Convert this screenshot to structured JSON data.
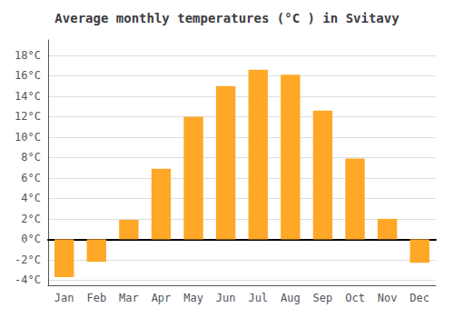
{
  "chart_data": {
    "type": "bar",
    "title": "Average monthly temperatures (°C ) in Svitavy",
    "categories": [
      "Jan",
      "Feb",
      "Mar",
      "Apr",
      "May",
      "Jun",
      "Jul",
      "Aug",
      "Sep",
      "Oct",
      "Nov",
      "Dec"
    ],
    "values": [
      -3.7,
      -2.2,
      1.9,
      6.9,
      12.0,
      15.0,
      16.6,
      16.1,
      12.6,
      7.9,
      2.0,
      -2.3
    ],
    "color": "#FFA726",
    "ylim": [
      -4.5,
      19.5
    ],
    "yticks": [
      {
        "value": -4,
        "label": "-4°C"
      },
      {
        "value": -2,
        "label": "-2°C"
      },
      {
        "value": 0,
        "label": "0°C"
      },
      {
        "value": 2,
        "label": "2°C"
      },
      {
        "value": 4,
        "label": "4°C"
      },
      {
        "value": 6,
        "label": "6°C"
      },
      {
        "value": 8,
        "label": "8°C"
      },
      {
        "value": 10,
        "label": "10°C"
      },
      {
        "value": 12,
        "label": "12°C"
      },
      {
        "value": 14,
        "label": "14°C"
      },
      {
        "value": 16,
        "label": "16°C"
      },
      {
        "value": 18,
        "label": "18°C"
      }
    ],
    "grid": true
  }
}
